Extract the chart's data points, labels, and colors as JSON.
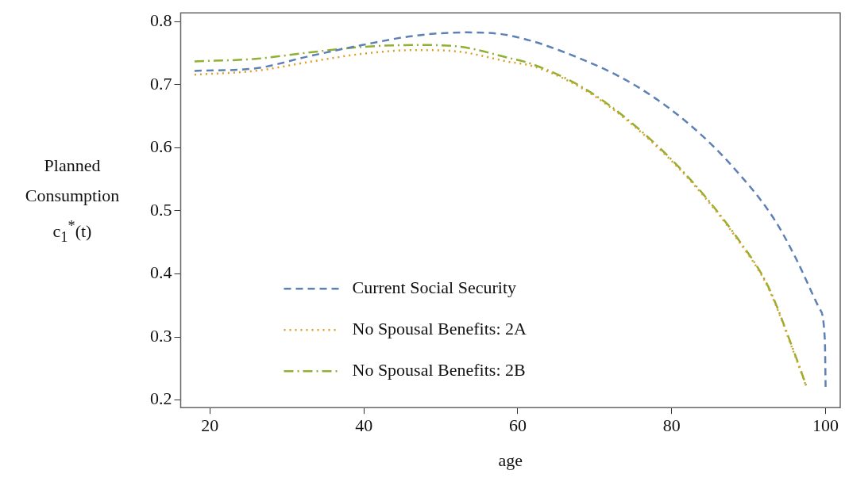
{
  "chart_data": {
    "type": "line",
    "xlabel": "age",
    "ylabel": "Planned Consumption c$_{1}$$^{*}$(t)",
    "xlim": [
      16.2,
      101.9
    ],
    "xticks": [
      20,
      40,
      60,
      80,
      100
    ],
    "ylim": [
      0.188,
      0.814
    ],
    "yticks": [
      0.2,
      0.3,
      0.4,
      0.5,
      0.6,
      0.7,
      0.8
    ],
    "grid": false,
    "legend": "bottom left",
    "marker": "none",
    "series": [
      {
        "name": "Current Social Security",
        "color": "#5e81b5",
        "line_style": "dashed",
        "x": [
          18,
          25.9,
          32.8,
          39.8,
          46.8,
          53.4,
          59,
          68.8,
          75.8,
          82.7,
          88,
          93.2,
          96,
          99.2,
          99.9,
          100
        ],
        "values": [
          0.722,
          0.726,
          0.745,
          0.763,
          0.778,
          0.783,
          0.778,
          0.738,
          0.695,
          0.633,
          0.569,
          0.489,
          0.428,
          0.345,
          0.296,
          0.221
        ]
      },
      {
        "name": "No Spousal Benefits: 2A",
        "color": "#e19c24",
        "line_style": "dotted",
        "x": [
          18,
          25.9,
          32.8,
          39.8,
          46.8,
          52,
          59,
          61.8,
          68.8,
          75.8,
          82.7,
          88.7,
          92.5,
          96,
          97.5
        ],
        "values": [
          0.716,
          0.722,
          0.736,
          0.749,
          0.755,
          0.753,
          0.736,
          0.73,
          0.691,
          0.627,
          0.544,
          0.452,
          0.379,
          0.271,
          0.221
        ]
      },
      {
        "name": "No Spousal Benefits: 2B",
        "color": "#8fb032",
        "line_style": "dashdot",
        "x": [
          18,
          25.9,
          32.8,
          39.8,
          46.8,
          52,
          59,
          61.8,
          68.8,
          75.8,
          82.7,
          88.7,
          92.5,
          96,
          97.5
        ],
        "values": [
          0.737,
          0.741,
          0.751,
          0.76,
          0.763,
          0.761,
          0.742,
          0.733,
          0.693,
          0.629,
          0.546,
          0.454,
          0.381,
          0.273,
          0.222
        ]
      }
    ]
  }
}
